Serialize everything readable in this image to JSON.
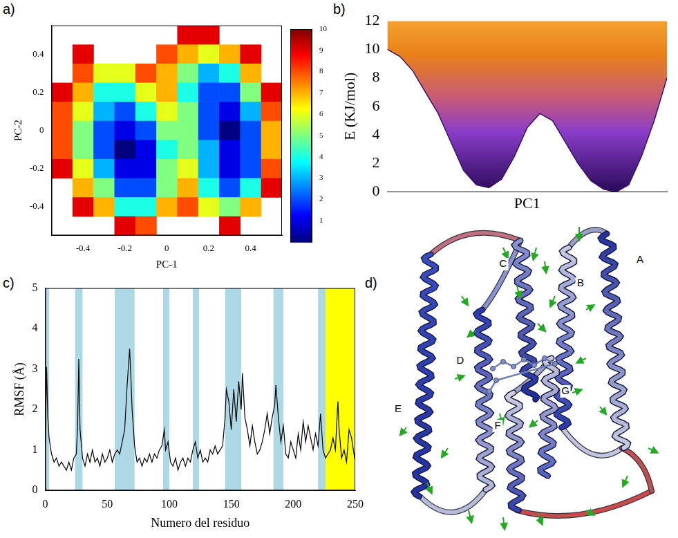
{
  "chart_data": [
    {
      "panel": "a)",
      "type": "heatmap",
      "xlabel": "PC-1",
      "ylabel": "PC-2",
      "xlim": [
        -0.55,
        0.55
      ],
      "ylim": [
        -0.55,
        0.55
      ],
      "xticks": [
        -0.4,
        -0.2,
        0,
        0.2,
        0.4
      ],
      "yticks": [
        -0.4,
        -0.2,
        0,
        0.2,
        0.4
      ],
      "grid": false,
      "x": [
        -0.5,
        -0.4,
        -0.3,
        -0.2,
        -0.1,
        0,
        0.1,
        0.2,
        0.3,
        0.4,
        0.5
      ],
      "y": [
        0.5,
        0.4,
        0.3,
        0.2,
        0.1,
        0,
        -0.1,
        -0.2,
        -0.3,
        -0.4,
        -0.5
      ],
      "cells": [
        [
          null,
          null,
          null,
          null,
          null,
          null,
          9,
          9,
          null,
          null,
          null
        ],
        [
          null,
          9,
          null,
          null,
          null,
          8,
          7,
          6,
          7,
          9,
          null
        ],
        [
          null,
          8,
          6,
          6,
          8,
          7,
          5,
          3,
          4,
          7,
          null
        ],
        [
          9,
          7,
          4,
          4,
          6,
          7,
          4,
          2,
          2,
          5,
          9
        ],
        [
          8,
          6,
          3,
          2,
          4,
          6,
          5,
          2,
          1,
          3,
          8
        ],
        [
          8,
          5,
          2,
          1,
          2,
          5,
          5,
          2,
          0,
          2,
          7
        ],
        [
          8,
          5,
          2,
          0,
          1,
          4,
          5,
          3,
          1,
          2,
          7
        ],
        [
          9,
          6,
          3,
          1,
          1,
          5,
          6,
          3,
          1,
          2,
          8
        ],
        [
          null,
          7,
          5,
          2,
          2,
          5,
          7,
          4,
          2,
          4,
          9
        ],
        [
          null,
          9,
          7,
          4,
          4,
          7,
          8,
          6,
          5,
          7,
          null
        ],
        [
          null,
          null,
          null,
          9,
          8,
          null,
          null,
          null,
          9,
          null,
          null
        ]
      ],
      "colorbar": {
        "range": [
          0,
          10
        ],
        "ticks": [
          1,
          2,
          3,
          4,
          5,
          6,
          7,
          8,
          9,
          10
        ]
      }
    },
    {
      "panel": "b)",
      "type": "area",
      "xlabel": "PC1",
      "ylabel": "E (KJ/mol)",
      "xlim": [
        -0.55,
        0.55
      ],
      "ylim": [
        0,
        12
      ],
      "yticks": [
        0,
        2,
        4,
        6,
        8,
        10,
        12
      ],
      "tick_labels": "y",
      "grid": false,
      "x": [
        -0.55,
        -0.5,
        -0.45,
        -0.4,
        -0.35,
        -0.3,
        -0.25,
        -0.2,
        -0.15,
        -0.1,
        -0.05,
        0,
        0.05,
        0.1,
        0.15,
        0.2,
        0.25,
        0.3,
        0.35,
        0.4,
        0.45,
        0.5,
        0.55
      ],
      "values": [
        10,
        9.5,
        8.5,
        7,
        5.5,
        3.5,
        1.5,
        0.5,
        0.3,
        0.9,
        2.5,
        4.5,
        5.5,
        5,
        3.5,
        2,
        0.8,
        0.2,
        0,
        0.5,
        2.5,
        5,
        8
      ]
    },
    {
      "panel": "c)",
      "type": "line",
      "xlabel": "Numero del residuo",
      "ylabel": "RMSF (Å)",
      "xlim": [
        0,
        250
      ],
      "ylim": [
        0,
        5
      ],
      "xticks": [
        0,
        50,
        100,
        150,
        200,
        250
      ],
      "yticks": [
        0,
        1,
        2,
        3,
        4,
        5
      ],
      "grid": false,
      "color": "#000000",
      "x": [
        0,
        1,
        2,
        3,
        5,
        7,
        9,
        11,
        13,
        15,
        17,
        19,
        21,
        23,
        25,
        26,
        27,
        28,
        30,
        32,
        34,
        36,
        38,
        40,
        42,
        44,
        46,
        48,
        50,
        52,
        54,
        56,
        58,
        60,
        62,
        64,
        66,
        68,
        69,
        70,
        72,
        74,
        76,
        78,
        80,
        82,
        84,
        86,
        88,
        90,
        92,
        94,
        96,
        97,
        99,
        101,
        103,
        105,
        107,
        109,
        111,
        113,
        115,
        117,
        119,
        121,
        123,
        125,
        127,
        129,
        131,
        133,
        135,
        137,
        139,
        141,
        143,
        145,
        146,
        148,
        150,
        152,
        154,
        156,
        158,
        159,
        161,
        163,
        165,
        167,
        169,
        171,
        173,
        175,
        177,
        179,
        181,
        183,
        185,
        186,
        188,
        190,
        192,
        194,
        196,
        198,
        200,
        202,
        204,
        206,
        208,
        210,
        212,
        214,
        216,
        218,
        220,
        222,
        224,
        226,
        228,
        230,
        232,
        234,
        236,
        237,
        239,
        241,
        243,
        245,
        247,
        249,
        250
      ],
      "values": [
        1.2,
        3.05,
        1.8,
        1.3,
        0.9,
        0.7,
        0.8,
        0.6,
        0.7,
        0.6,
        0.5,
        0.7,
        0.5,
        0.8,
        0.9,
        1.6,
        3.25,
        1.5,
        0.8,
        0.6,
        0.9,
        0.7,
        1.0,
        0.7,
        0.8,
        0.6,
        0.9,
        0.7,
        0.8,
        1.0,
        0.7,
        0.9,
        1.0,
        0.9,
        1.2,
        1.5,
        2.6,
        3.5,
        2.8,
        2.0,
        1.1,
        0.7,
        0.8,
        0.6,
        0.8,
        0.7,
        0.9,
        0.7,
        0.9,
        0.8,
        1.0,
        1.1,
        1.5,
        1.0,
        1.2,
        0.7,
        0.6,
        0.8,
        0.5,
        0.7,
        0.8,
        0.6,
        0.8,
        0.7,
        1.0,
        1.2,
        0.8,
        1.0,
        0.7,
        0.8,
        0.7,
        1.0,
        0.9,
        1.1,
        0.9,
        1.0,
        1.1,
        1.8,
        2.5,
        2.2,
        1.5,
        2.5,
        1.7,
        2.7,
        2.0,
        2.9,
        1.8,
        1.5,
        1.1,
        1.6,
        1.2,
        0.9,
        1.0,
        1.2,
        1.5,
        1.9,
        1.4,
        1.8,
        2.1,
        2.6,
        1.8,
        1.2,
        1.6,
        0.9,
        0.8,
        1.2,
        1.0,
        0.8,
        1.4,
        1.0,
        1.7,
        1.2,
        1.6,
        1.3,
        1.0,
        1.4,
        1.1,
        1.9,
        1.0,
        0.8,
        0.9,
        1.0,
        1.3,
        1.0,
        2.2,
        1.5,
        0.8,
        1.0,
        0.7,
        1.5,
        1.3,
        0.9,
        0.7
      ],
      "regions": [
        {
          "start": 0,
          "end": 3,
          "color": "#add8e6"
        },
        {
          "start": 24,
          "end": 30,
          "color": "#add8e6"
        },
        {
          "start": 56,
          "end": 72,
          "color": "#add8e6"
        },
        {
          "start": 95,
          "end": 100,
          "color": "#add8e6"
        },
        {
          "start": 119,
          "end": 124,
          "color": "#add8e6"
        },
        {
          "start": 145,
          "end": 158,
          "color": "#add8e6"
        },
        {
          "start": 184,
          "end": 192,
          "color": "#add8e6"
        },
        {
          "start": 220,
          "end": 226,
          "color": "#add8e6"
        },
        {
          "start": 226,
          "end": 250,
          "color": "#ffff00"
        }
      ]
    },
    {
      "panel": "d)",
      "type": "structure",
      "labels": [
        "A",
        "B",
        "C",
        "D",
        "E",
        "F",
        "G"
      ]
    }
  ]
}
